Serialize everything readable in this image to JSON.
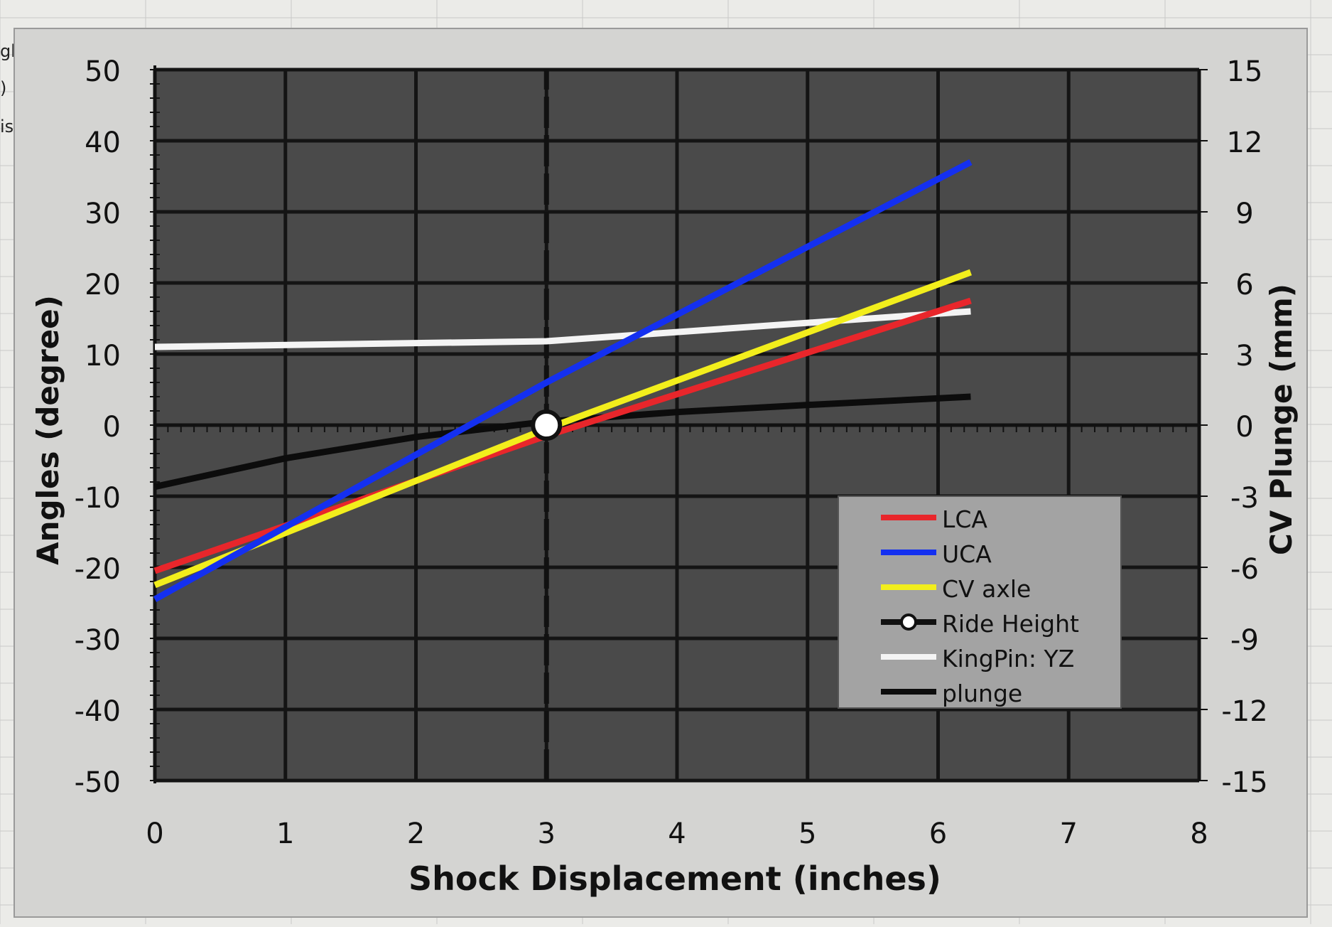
{
  "spreadsheet_fragments": [
    "gh",
    ")",
    "is"
  ],
  "chart_data": {
    "type": "line",
    "title": "",
    "xlabel": "Shock Displacement (inches)",
    "ylabel": "Angles (degree)",
    "y2label": "CV Plunge (mm)",
    "xlim": [
      0,
      8
    ],
    "ylim": [
      -50,
      50
    ],
    "y2lim": [
      -15,
      15
    ],
    "x_ticks": [
      "0",
      "1",
      "2",
      "3",
      "4",
      "5",
      "6",
      "7",
      "8"
    ],
    "y_ticks": [
      "50",
      "40",
      "30",
      "20",
      "10",
      "0",
      "-10",
      "-20",
      "-30",
      "-40",
      "-50"
    ],
    "y2_ticks": [
      "15",
      "12",
      "9",
      "6",
      "3",
      "0",
      "-3",
      "-6",
      "-9",
      "-12",
      "-15"
    ],
    "grid": true,
    "legend_position": "bottom-right",
    "colors": {
      "plot_bg": "#4a4a4a",
      "grid": "#141414",
      "frame_bg": "#d4d4d2",
      "legend_bg": "#a3a3a3"
    },
    "series": [
      {
        "name": "LCA",
        "color": "#e8262b",
        "axis": "left",
        "x": [
          0,
          3,
          6.25
        ],
        "y": [
          -20.5,
          -1.5,
          17.5
        ]
      },
      {
        "name": "UCA",
        "color": "#1430f0",
        "axis": "left",
        "x": [
          0,
          3,
          6.25
        ],
        "y": [
          -24.5,
          6,
          37
        ]
      },
      {
        "name": "CV axle",
        "color": "#f2ee1c",
        "axis": "left",
        "x": [
          0,
          3,
          6.25
        ],
        "y": [
          -22.5,
          -0.5,
          21.5
        ]
      },
      {
        "name": "Ride Height",
        "color": "#111111",
        "axis": "left",
        "marker": "circle",
        "style": "vertical-dashed",
        "x": [
          3,
          3
        ],
        "y": [
          -50,
          50
        ],
        "point": [
          3,
          0
        ]
      },
      {
        "name": "KingPin: YZ",
        "color": "#f4f4f4",
        "axis": "left",
        "x": [
          0,
          3,
          6.25
        ],
        "y": [
          11,
          11.8,
          16
        ]
      },
      {
        "name": "plunge",
        "color": "#0c0c0c",
        "axis": "right",
        "x": [
          0,
          1,
          2,
          3,
          4,
          5,
          6.25
        ],
        "y": [
          -2.6,
          -1.4,
          -0.5,
          0.15,
          0.55,
          0.85,
          1.2
        ]
      }
    ]
  }
}
